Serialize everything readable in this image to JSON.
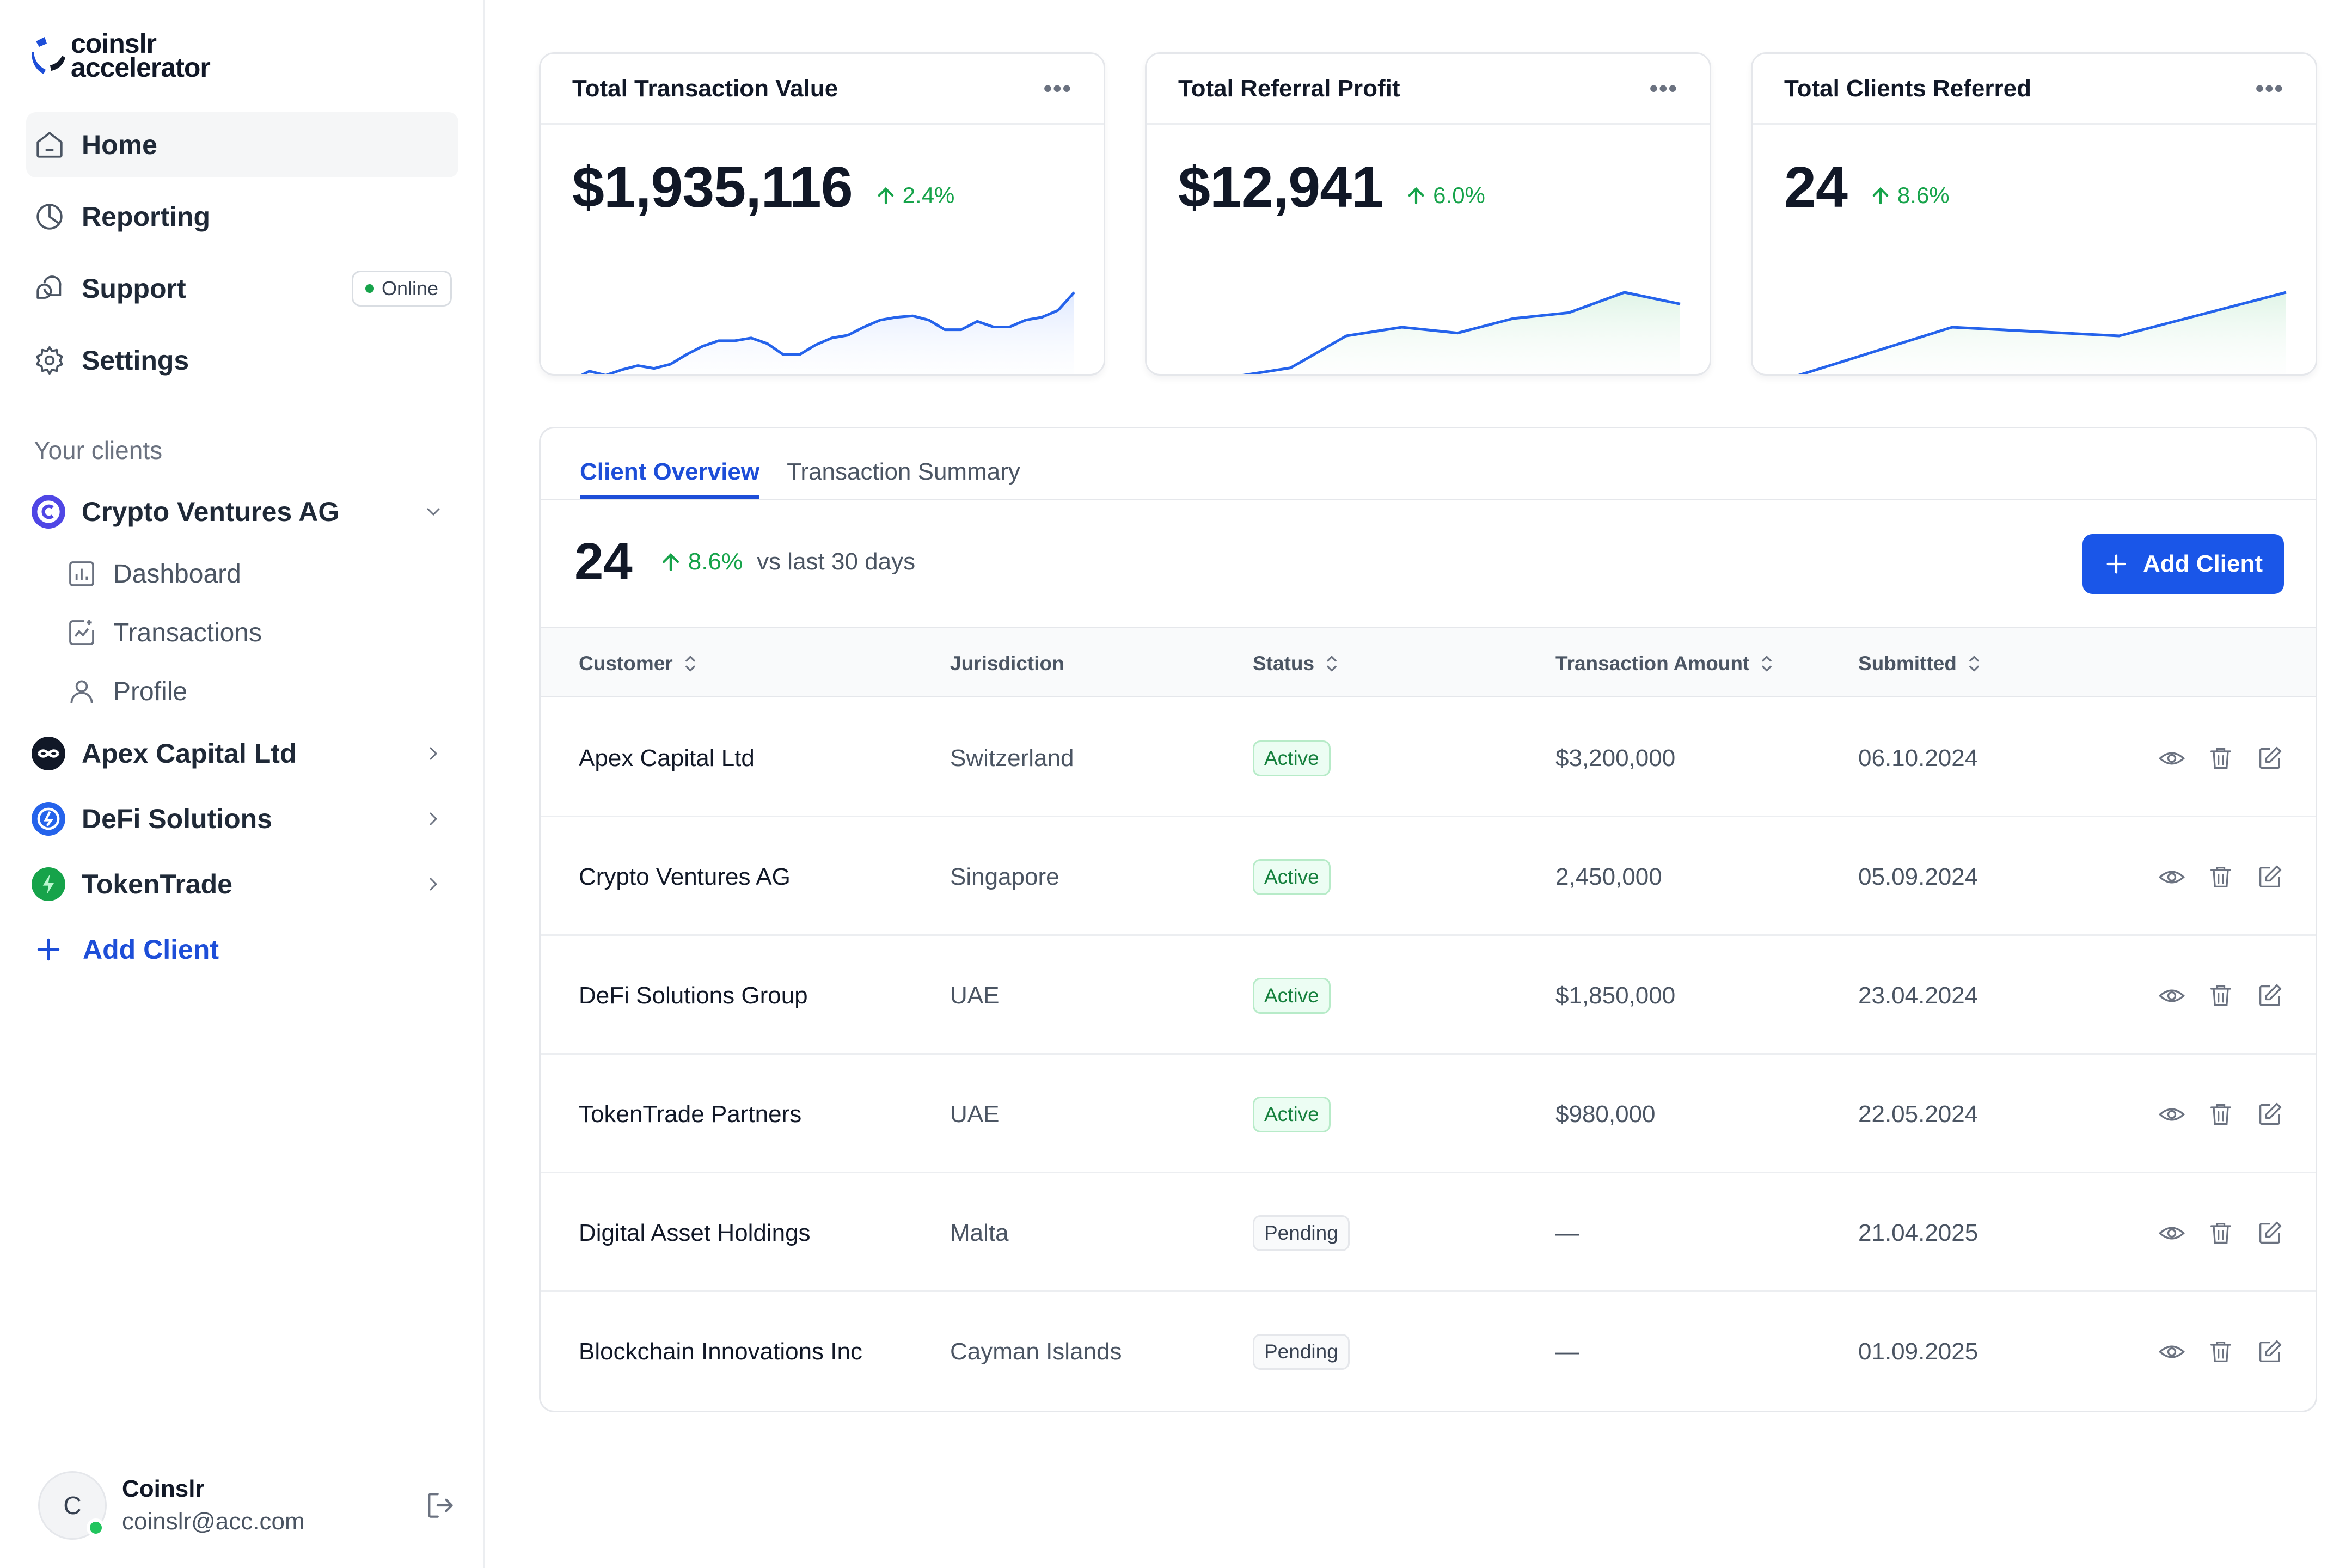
{
  "brand": {
    "line1": "coinslr",
    "line2": "accelerator",
    "accent": "#1d4ed8"
  },
  "nav": [
    {
      "label": "Home",
      "icon": "home-icon",
      "active": true
    },
    {
      "label": "Reporting",
      "icon": "pie-chart-icon"
    },
    {
      "label": "Support",
      "icon": "chat-icon",
      "badge": "Online"
    },
    {
      "label": "Settings",
      "icon": "gear-icon"
    }
  ],
  "clients_section": {
    "label": "Your clients",
    "clients": [
      {
        "name": "Crypto Ventures AG",
        "expanded": true,
        "color": "#4f46e5",
        "sub": [
          {
            "label": "Dashboard",
            "icon": "dashboard-icon"
          },
          {
            "label": "Transactions",
            "icon": "transactions-icon"
          },
          {
            "label": "Profile",
            "icon": "user-icon"
          }
        ]
      },
      {
        "name": "Apex Capital Ltd",
        "color": "#111827"
      },
      {
        "name": "DeFi Solutions",
        "color": "#2563eb"
      },
      {
        "name": "TokenTrade",
        "color": "#16a34a"
      }
    ],
    "add_label": "Add Client"
  },
  "user": {
    "initial": "C",
    "name": "Coinslr",
    "email": "coinslr@acc.com"
  },
  "cards": [
    {
      "title": "Total Transaction Value",
      "value": "$1,935,116",
      "delta": "2.4%"
    },
    {
      "title": "Total Referral Profit",
      "value": "$12,941",
      "delta": "6.0%"
    },
    {
      "title": "Total Clients Referred",
      "value": "24",
      "delta": "8.6%"
    }
  ],
  "sparklines": [
    {
      "values": [
        12,
        18,
        15,
        19,
        22,
        20,
        23,
        30,
        36,
        40,
        40,
        42,
        38,
        30,
        30,
        37,
        42,
        44,
        50,
        55,
        57,
        58,
        55,
        48,
        48,
        54,
        50,
        50,
        55,
        57,
        62,
        75
      ]
    },
    {
      "values": [
        10,
        11,
        14,
        25,
        28,
        26,
        31,
        33,
        40,
        36
      ]
    },
    {
      "values": [
        5,
        35,
        30,
        55
      ]
    }
  ],
  "overview": {
    "tabs": [
      "Client Overview",
      "Transaction Summary"
    ],
    "count": "24",
    "delta": "8.6%",
    "vs": "vs last 30 days",
    "add_button": "Add Client",
    "columns": [
      "Customer",
      "Jurisdiction",
      "Status",
      "Transaction Amount",
      "Submitted"
    ],
    "rows": [
      {
        "customer": "Apex Capital Ltd",
        "jurisdiction": "Switzerland",
        "status": "Active",
        "amount": "$3,200,000",
        "submitted": "06.10.2024"
      },
      {
        "customer": "Crypto Ventures AG",
        "jurisdiction": "Singapore",
        "status": "Active",
        "amount": "2,450,000",
        "submitted": "05.09.2024"
      },
      {
        "customer": "DeFi Solutions Group",
        "jurisdiction": "UAE",
        "status": "Active",
        "amount": "$1,850,000",
        "submitted": "23.04.2024"
      },
      {
        "customer": "TokenTrade Partners",
        "jurisdiction": "UAE",
        "status": "Active",
        "amount": "$980,000",
        "submitted": "22.05.2024"
      },
      {
        "customer": "Digital Asset Holdings",
        "jurisdiction": "Malta",
        "status": "Pending",
        "amount": "—",
        "submitted": "21.04.2025"
      },
      {
        "customer": "Blockchain Innovations Inc",
        "jurisdiction": "Cayman Islands",
        "status": "Pending",
        "amount": "—",
        "submitted": "01.09.2025"
      }
    ]
  }
}
